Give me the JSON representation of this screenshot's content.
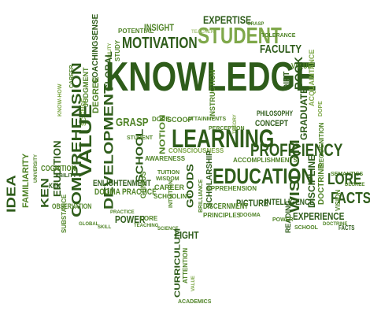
{
  "colors": {
    "dark_green": "#2e5c1a",
    "mid_green": "#4f8326",
    "light_green": "#7fa84a",
    "pale_green": "#a7c47c",
    "background": "#ffffff"
  },
  "words": {
    "knowledge": "KNOWLEDGE",
    "student": "STUDENT",
    "motivation": "MOTIVATION",
    "expertise": "EXPERTISE",
    "faculty": "FACULTY",
    "potential": "POTENTIAL",
    "insight": "INSIGHT",
    "learning": "LEARNING",
    "education": "EDUCATION",
    "proficiency": "PROFICIENCY",
    "value": "VALUE",
    "comprehension": "COMPREHENSION",
    "development": "DEVELOPMENT",
    "school": "SCHOOL",
    "wisdom": "WISDOM",
    "facts": "FACTS",
    "lore": "LORE",
    "experience": "EXPERIENCE",
    "idea": "IDEA",
    "ken": "KEN",
    "erudition": "ERUDITION",
    "familiarity": "FAMILIARITY",
    "grasp": "GRASP",
    "global": "GLOBAL",
    "book": "BOOK",
    "dirt": "DIRT",
    "curriculum": "CURRICULUM",
    "goods": "GOODS",
    "light": "LIGHT",
    "power": "POWER",
    "scoop": "SCOOP",
    "attainments": "ATTAINMENTS",
    "notion": "NOTION",
    "concept": "CONCEPT",
    "graduate": "GRADUATE",
    "intelligence": "INTELLIGENCE",
    "discipline": "DISCIPLINE",
    "doctrine": "DOCTRINE",
    "picture": "PICTURE",
    "discernment": "DISCERNMENT",
    "principles": "PRINCIPLES",
    "enlightenment": "ENLIGHTENMENT",
    "dogma_practice": "DOGMA PRACTICE",
    "awareness": "AWARENESS",
    "genius": "GENIUS",
    "career": "CAREER",
    "schooling": "SCHOOLING",
    "consciousness": "CONSCIOUSNESS",
    "accomplishments": "ACCOMPLISHMENTS",
    "philosophy": "PHILOSOPHY",
    "recognition": "RECOGNITION",
    "reading": "READING",
    "vision": "VISION",
    "teacher": "TEACHER",
    "tolerance": "TOLERANCE",
    "study": "STUDY",
    "ability": "ABILITY",
    "science": "SCIENCE",
    "degree": "DEGREE",
    "judgment": "JUDGMENT",
    "coachingsense": "COACHINGSENSE",
    "cognition": "COGNITION",
    "observation": "OBSERVATION",
    "substance": "SUBSTANCE",
    "instruction": "INSTRUCTION",
    "acquaintance": "ACQUAINTANCE",
    "dope": "DOPE",
    "academics": "ACADEMICS",
    "attention": "ATTENTION",
    "theory": "THEORY",
    "perception": "PERCEPTION",
    "apprehension": "APPREHENSION",
    "scholarship": "SCHOLARSHIP",
    "wisdom_small": "WISDOM",
    "tuition": "TUITION",
    "know_how": "KNOW-HOW",
    "university": "UNIVERSITY",
    "semantics": "SEMANTICS",
    "doctrine_small": "DOCTRINE",
    "school_small": "SCHOOL",
    "intuition": "INTUITION",
    "skill": "SKILL",
    "lore_small": "LORE",
    "practice": "PRACTICE",
    "teaching": "TEACHING",
    "brilliance": "BRILLIANCE",
    "dogma": "DOGMA",
    "idea_small": "IDEA",
    "genius_small": "GENIUS",
    "value_small": "VALUE",
    "facts_small": "FACTS",
    "power_small": "POWER",
    "global_small": "GLOBAL",
    "degree_small": "DEGREE",
    "scoop_small": "SCOOP",
    "light_small": "LIGHT",
    "career_small": "CAREER",
    "student_small": "STUDENT",
    "concept_small": "CONCEPT",
    "notion_small": "NOTION"
  }
}
